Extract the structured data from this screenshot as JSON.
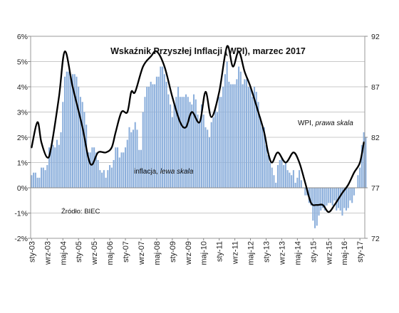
{
  "chart_data": {
    "type": "bar",
    "title": "Wskaźnik Przyszłej Inflacji (WPI), marzec 2017",
    "source": "Źródło: BIEC",
    "annotations": {
      "wpi_label": "WPI,",
      "wpi_label_em": "prawa skala",
      "inflation_label": "inflacja,",
      "inflation_label_em": "lewa skala"
    },
    "y_left": {
      "min": -2,
      "max": 6,
      "step": 1,
      "tick_labels": [
        "-2%",
        "-1%",
        "0%",
        "1%",
        "2%",
        "3%",
        "4%",
        "5%",
        "6%"
      ]
    },
    "y_right": {
      "min": 72,
      "max": 92,
      "tick_values": [
        72,
        77,
        82,
        87,
        92
      ],
      "tick_labels": [
        "72",
        "77",
        "82",
        "87",
        "92"
      ]
    },
    "x_axis": {
      "start": "2003-01",
      "end": "2017-03",
      "tick_labels": [
        "sty-03",
        "wrz-03",
        "maj-04",
        "sty-05",
        "wrz-05",
        "maj-06",
        "sty-07",
        "wrz-07",
        "maj-08",
        "sty-09",
        "wrz-09",
        "maj-10",
        "sty-11",
        "wrz-11",
        "maj-12",
        "sty-13",
        "wrz-13",
        "maj-14",
        "sty-15",
        "wrz-15",
        "maj-16",
        "sty-17"
      ]
    },
    "colors": {
      "bars": "#8db0dc",
      "wpi_line": "#000000"
    },
    "series": [
      {
        "name": "inflacja",
        "type": "bar",
        "axis": "left",
        "start": "2003-01",
        "values": [
          0.5,
          0.6,
          0.6,
          0.4,
          0.4,
          0.8,
          0.8,
          0.7,
          0.9,
          1.6,
          1.6,
          1.7,
          1.6,
          1.9,
          1.7,
          2.2,
          3.4,
          4.4,
          4.6,
          4.6,
          4.4,
          4.5,
          4.5,
          4.4,
          4.0,
          3.6,
          3.4,
          3.0,
          2.5,
          1.4,
          1.4,
          1.6,
          1.6,
          1.4,
          1.1,
          0.7,
          0.6,
          0.7,
          0.4,
          0.7,
          0.9,
          0.8,
          1.1,
          1.6,
          1.6,
          1.2,
          1.4,
          1.4,
          1.6,
          1.9,
          2.4,
          2.2,
          2.3,
          2.6,
          2.3,
          1.5,
          1.5,
          3.0,
          3.6,
          4.0,
          4.0,
          4.2,
          4.1,
          4.1,
          4.4,
          4.4,
          4.8,
          4.8,
          4.5,
          4.2,
          3.7,
          3.3,
          2.8,
          3.3,
          3.6,
          4.0,
          3.6,
          3.6,
          3.6,
          3.7,
          3.6,
          3.4,
          3.3,
          3.7,
          3.5,
          2.9,
          2.6,
          3.3,
          2.9,
          2.4,
          2.3,
          2.0,
          2.6,
          2.8,
          3.1,
          3.0,
          3.6,
          3.6,
          4.0,
          4.5,
          5.0,
          4.2,
          4.1,
          4.1,
          4.1,
          4.3,
          4.8,
          4.6,
          4.1,
          4.3,
          4.3,
          4.0,
          4.0,
          3.6,
          4.0,
          3.8,
          3.4,
          2.8,
          2.4,
          2.4,
          1.7,
          1.3,
          1.0,
          0.8,
          0.5,
          0.2,
          0.9,
          1.1,
          1.2,
          0.9,
          1.0,
          0.7,
          0.6,
          0.5,
          0.7,
          0.2,
          0.4,
          0.7,
          0.3,
          0.0,
          -0.3,
          -0.3,
          -0.6,
          -0.7,
          -1.3,
          -1.6,
          -1.5,
          -1.1,
          -0.9,
          -0.8,
          -0.9,
          -0.7,
          -0.6,
          -0.6,
          -0.7,
          -0.5,
          -0.9,
          -0.8,
          -0.9,
          -1.1,
          -0.8,
          -0.9,
          -0.8,
          -0.5,
          -0.6,
          -0.3,
          0.0,
          0.5,
          0.8,
          1.7,
          2.2,
          2.0
        ]
      },
      {
        "name": "WPI",
        "type": "line",
        "axis": "right",
        "points": [
          [
            "2003-01",
            81.0
          ],
          [
            "2003-04",
            83.5
          ],
          [
            "2003-06",
            81.5
          ],
          [
            "2003-09",
            80.0
          ],
          [
            "2003-11",
            81.0
          ],
          [
            "2004-03",
            86.0
          ],
          [
            "2004-06",
            90.5
          ],
          [
            "2004-10",
            87.0
          ],
          [
            "2005-03",
            83.0
          ],
          [
            "2005-06",
            80.0
          ],
          [
            "2005-08",
            79.3
          ],
          [
            "2005-11",
            80.5
          ],
          [
            "2006-03",
            80.5
          ],
          [
            "2006-06",
            81.0
          ],
          [
            "2006-08",
            82.5
          ],
          [
            "2006-11",
            84.5
          ],
          [
            "2007-02",
            84.5
          ],
          [
            "2007-04",
            86.5
          ],
          [
            "2007-06",
            86.5
          ],
          [
            "2007-10",
            89.0
          ],
          [
            "2008-02",
            90.0
          ],
          [
            "2008-05",
            90.5
          ],
          [
            "2008-09",
            89.0
          ],
          [
            "2009-01",
            86.0
          ],
          [
            "2009-05",
            83.5
          ],
          [
            "2009-08",
            83.0
          ],
          [
            "2009-11",
            84.5
          ],
          [
            "2010-03",
            83.5
          ],
          [
            "2010-06",
            86.5
          ],
          [
            "2010-09",
            84.0
          ],
          [
            "2011-01",
            86.5
          ],
          [
            "2011-05",
            91.0
          ],
          [
            "2011-08",
            89.0
          ],
          [
            "2011-11",
            90.5
          ],
          [
            "2012-02",
            88.5
          ],
          [
            "2012-05",
            87.0
          ],
          [
            "2012-09",
            84.5
          ],
          [
            "2012-12",
            82.5
          ],
          [
            "2013-02",
            80.5
          ],
          [
            "2013-04",
            79.5
          ],
          [
            "2013-07",
            80.5
          ],
          [
            "2013-11",
            79.5
          ],
          [
            "2014-03",
            80.5
          ],
          [
            "2014-06",
            79.5
          ],
          [
            "2014-09",
            77.5
          ],
          [
            "2014-12",
            75.5
          ],
          [
            "2015-03",
            75.3
          ],
          [
            "2015-06",
            75.3
          ],
          [
            "2015-09",
            74.6
          ],
          [
            "2015-12",
            75.3
          ],
          [
            "2016-04",
            76.5
          ],
          [
            "2016-07",
            77.3
          ],
          [
            "2016-10",
            78.5
          ],
          [
            "2017-01",
            79.5
          ],
          [
            "2017-03",
            81.5
          ]
        ]
      }
    ],
    "grid": "horizontal"
  }
}
